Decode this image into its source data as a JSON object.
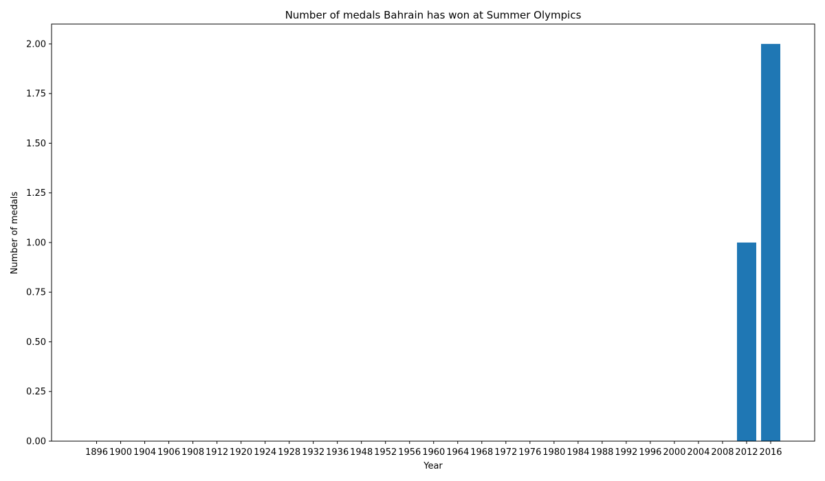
{
  "chart_data": {
    "type": "bar",
    "title": "Number of medals Bahrain has won at Summer Olympics",
    "xlabel": "Year",
    "ylabel": "Number of medals",
    "categories": [
      "1896",
      "1900",
      "1904",
      "1906",
      "1908",
      "1912",
      "1920",
      "1924",
      "1928",
      "1932",
      "1936",
      "1948",
      "1952",
      "1956",
      "1960",
      "1964",
      "1968",
      "1972",
      "1976",
      "1980",
      "1984",
      "1988",
      "1992",
      "1996",
      "2000",
      "2004",
      "2008",
      "2012",
      "2016"
    ],
    "values": [
      0,
      0,
      0,
      0,
      0,
      0,
      0,
      0,
      0,
      0,
      0,
      0,
      0,
      0,
      0,
      0,
      0,
      0,
      0,
      0,
      0,
      0,
      0,
      0,
      0,
      0,
      0,
      1,
      2
    ],
    "ylim": [
      0,
      2.1
    ],
    "yticks": [
      0.0,
      0.25,
      0.5,
      0.75,
      1.0,
      1.25,
      1.5,
      1.75,
      2.0
    ],
    "ytick_labels": [
      "0.00",
      "0.25",
      "0.50",
      "0.75",
      "1.00",
      "1.25",
      "1.50",
      "1.75",
      "2.00"
    ],
    "bar_color": "#1f77b4",
    "grid": false,
    "legend": "none"
  }
}
